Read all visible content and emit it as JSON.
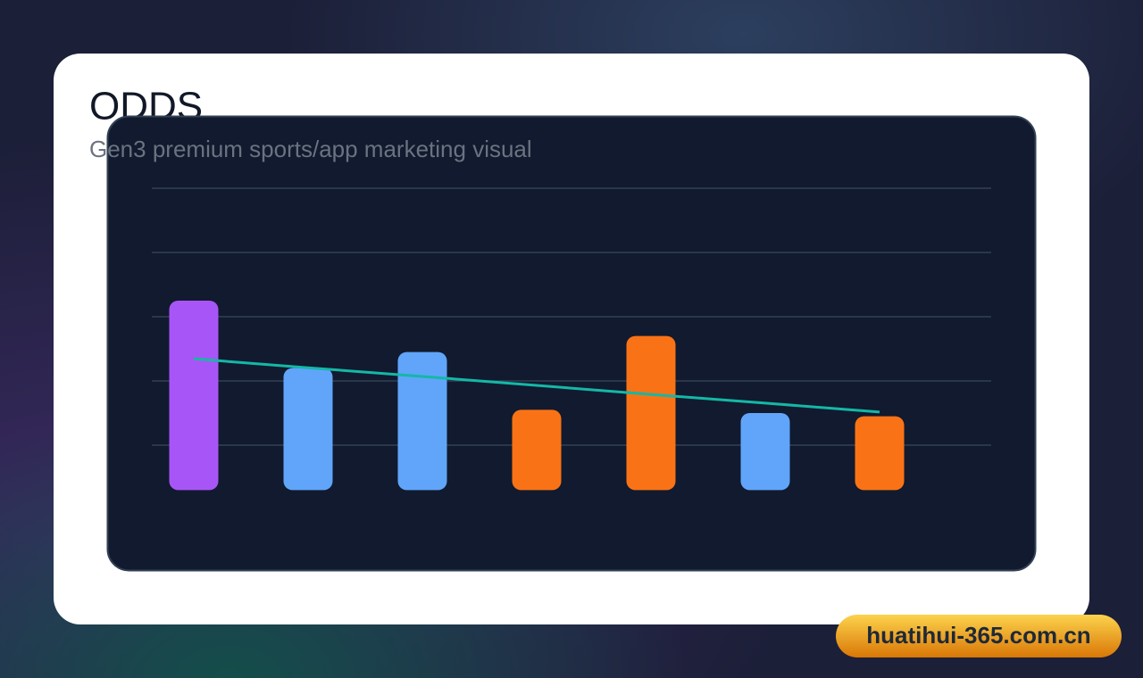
{
  "chart_data": {
    "type": "bar",
    "title": "ODDS",
    "subtitle": "Gen3 premium sports/app marketing visual",
    "categories": [
      null,
      null,
      null,
      null,
      null,
      null,
      null
    ],
    "values": [
      65,
      44,
      49,
      31,
      54,
      30,
      29
    ],
    "colors": [
      "#a855f7",
      "#60a5fa",
      "#60a5fa",
      "#f97316",
      "#f97316",
      "#60a5fa",
      "#f97316"
    ],
    "series": [
      {
        "type": "line",
        "color": "#14b8a6",
        "values": [
          46.9,
          44.1,
          41.4,
          38.6,
          35.8,
          33.1,
          30.3
        ]
      }
    ],
    "ylim": [
      6,
      100
    ],
    "yticks": [
      20,
      40,
      60,
      80,
      100
    ],
    "grid": true
  },
  "watermark": "huatihui-365.com.cn"
}
